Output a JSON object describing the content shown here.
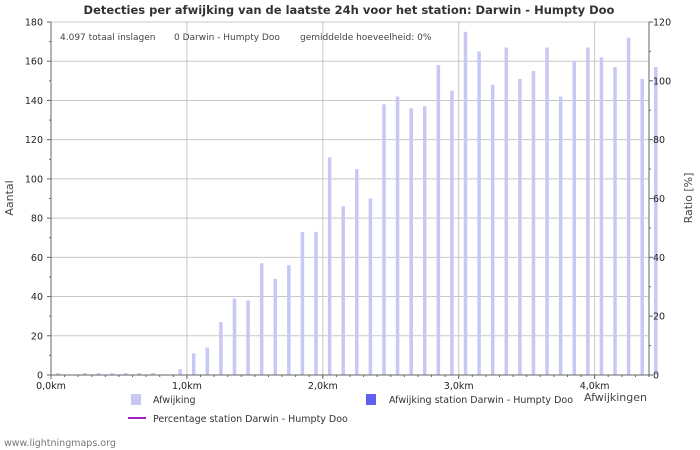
{
  "chart_data": {
    "type": "bar",
    "title": "Detecties per afwijking van de laatste 24h voor het station: Darwin - Humpty Doo",
    "ylabel_left": "Aantal",
    "ylabel_right": "Ratio [%]",
    "xlabel": "Afwijkingen",
    "y_left_range": [
      0,
      180
    ],
    "y_left_ticks": [
      "0",
      "20",
      "40",
      "60",
      "80",
      "100",
      "120",
      "140",
      "160",
      "180"
    ],
    "y_right_range": [
      0,
      120
    ],
    "y_right_ticks": [
      "0",
      "20",
      "40",
      "60",
      "80",
      "100",
      "120"
    ],
    "x_range_km": [
      0,
      4.4
    ],
    "x_ticks": [
      {
        "value": 0,
        "label": "0,0km"
      },
      {
        "value": 1,
        "label": "1,0km"
      },
      {
        "value": 2,
        "label": "2,0km"
      },
      {
        "value": 3,
        "label": "3,0km"
      },
      {
        "value": 4,
        "label": "4,0km"
      }
    ],
    "bin_width_km": 0.1,
    "series": [
      {
        "name": "Afwijking",
        "color": "#c8c8f5",
        "values": [
          1,
          0,
          1,
          1,
          1,
          1,
          1,
          1,
          0,
          3,
          11,
          14,
          27,
          39,
          38,
          57,
          49,
          56,
          73,
          73,
          111,
          86,
          105,
          90,
          138,
          142,
          136,
          137,
          158,
          145,
          175,
          165,
          148,
          167,
          151,
          155,
          167,
          142,
          160,
          167,
          162,
          157,
          172,
          151,
          157
        ]
      },
      {
        "name": "Afwijking station Darwin - Humpty Doo",
        "color": "#6060f0",
        "values": [
          0,
          0,
          0,
          0,
          0,
          0,
          0,
          0,
          0,
          0,
          0,
          0,
          0,
          0,
          0,
          0,
          0,
          0,
          0,
          0,
          0,
          0,
          0,
          0,
          0,
          0,
          0,
          0,
          0,
          0,
          0,
          0,
          0,
          0,
          0,
          0,
          0,
          0,
          0,
          0,
          0,
          0,
          0,
          0,
          0
        ]
      }
    ],
    "line_series": {
      "name": "Percentage station Darwin - Humpty Doo",
      "color": "#a020c0",
      "values": []
    },
    "stats": {
      "total": "4.097 totaal inslagen",
      "station": "0 Darwin - Humpty Doo",
      "average": "gemiddelde hoeveelheid: 0%"
    },
    "legend": [
      "Afwijking",
      "Afwijking station Darwin - Humpty Doo",
      "Percentage station Darwin - Humpty Doo"
    ],
    "grid": true
  },
  "footer": "www.lightningmaps.org"
}
